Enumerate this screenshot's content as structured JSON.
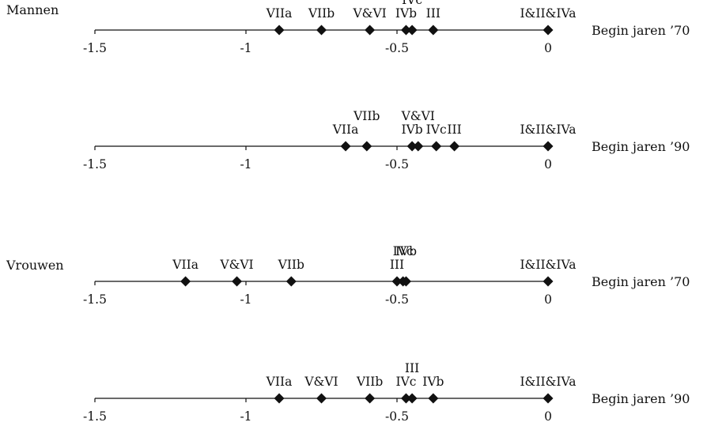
{
  "chart_data": [
    {
      "type": "scatter",
      "group": "Mannen",
      "period": "Begin jaren ’70",
      "xlim": [
        -1.5,
        0
      ],
      "ticks": [
        "-1.5",
        "-1",
        "-0.5",
        "0"
      ],
      "tick_values": [
        -1.5,
        -1,
        -0.5,
        0
      ],
      "points": [
        {
          "label": "VIIa",
          "x": -0.89
        },
        {
          "label": "VIIb",
          "x": -0.75
        },
        {
          "label": "V&VI",
          "x": -0.59
        },
        {
          "label": "IVb",
          "x": -0.47
        },
        {
          "label": "IVc",
          "x": -0.45
        },
        {
          "label": "III",
          "x": -0.38
        },
        {
          "label": "I&II&IVa",
          "x": 0
        }
      ]
    },
    {
      "type": "scatter",
      "group": "",
      "period": "Begin jaren ’90",
      "xlim": [
        -1.5,
        0
      ],
      "ticks": [
        "-1.5",
        "-1",
        "-0.5",
        "0"
      ],
      "tick_values": [
        -1.5,
        -1,
        -0.5,
        0
      ],
      "points": [
        {
          "label": "VIIa",
          "x": -0.67
        },
        {
          "label": "VIIb",
          "x": -0.6
        },
        {
          "label": "IVb",
          "x": -0.45
        },
        {
          "label": "V&VI",
          "x": -0.43
        },
        {
          "label": "IVc",
          "x": -0.37
        },
        {
          "label": "III",
          "x": -0.31
        },
        {
          "label": "I&II&IVa",
          "x": 0
        }
      ]
    },
    {
      "type": "scatter",
      "group": "Vrouwen",
      "period": "Begin jaren ’70",
      "xlim": [
        -1.5,
        0
      ],
      "ticks": [
        "-1.5",
        "-1",
        "-0.5",
        "0"
      ],
      "tick_values": [
        -1.5,
        -1,
        -0.5,
        0
      ],
      "points": [
        {
          "label": "VIIa",
          "x": -1.2
        },
        {
          "label": "V&VI",
          "x": -1.03
        },
        {
          "label": "VIIb",
          "x": -0.85
        },
        {
          "label": "III",
          "x": -0.5
        },
        {
          "label": "IVc",
          "x": -0.48
        },
        {
          "label": "IVb",
          "x": -0.47
        },
        {
          "label": "I&II&IVa",
          "x": 0
        }
      ]
    },
    {
      "type": "scatter",
      "group": "",
      "period": "Begin jaren ’90",
      "xlim": [
        -1.5,
        0
      ],
      "ticks": [
        "-1.5",
        "-1",
        "-0.5",
        "0"
      ],
      "tick_values": [
        -1.5,
        -1,
        -0.5,
        0
      ],
      "points": [
        {
          "label": "VIIa",
          "x": -0.89
        },
        {
          "label": "V&VI",
          "x": -0.75
        },
        {
          "label": "VIIb",
          "x": -0.59
        },
        {
          "label": "IVc",
          "x": -0.47
        },
        {
          "label": "III",
          "x": -0.45
        },
        {
          "label": "IVb",
          "x": -0.38
        },
        {
          "label": "I&II&IVa",
          "x": 0
        }
      ]
    }
  ]
}
